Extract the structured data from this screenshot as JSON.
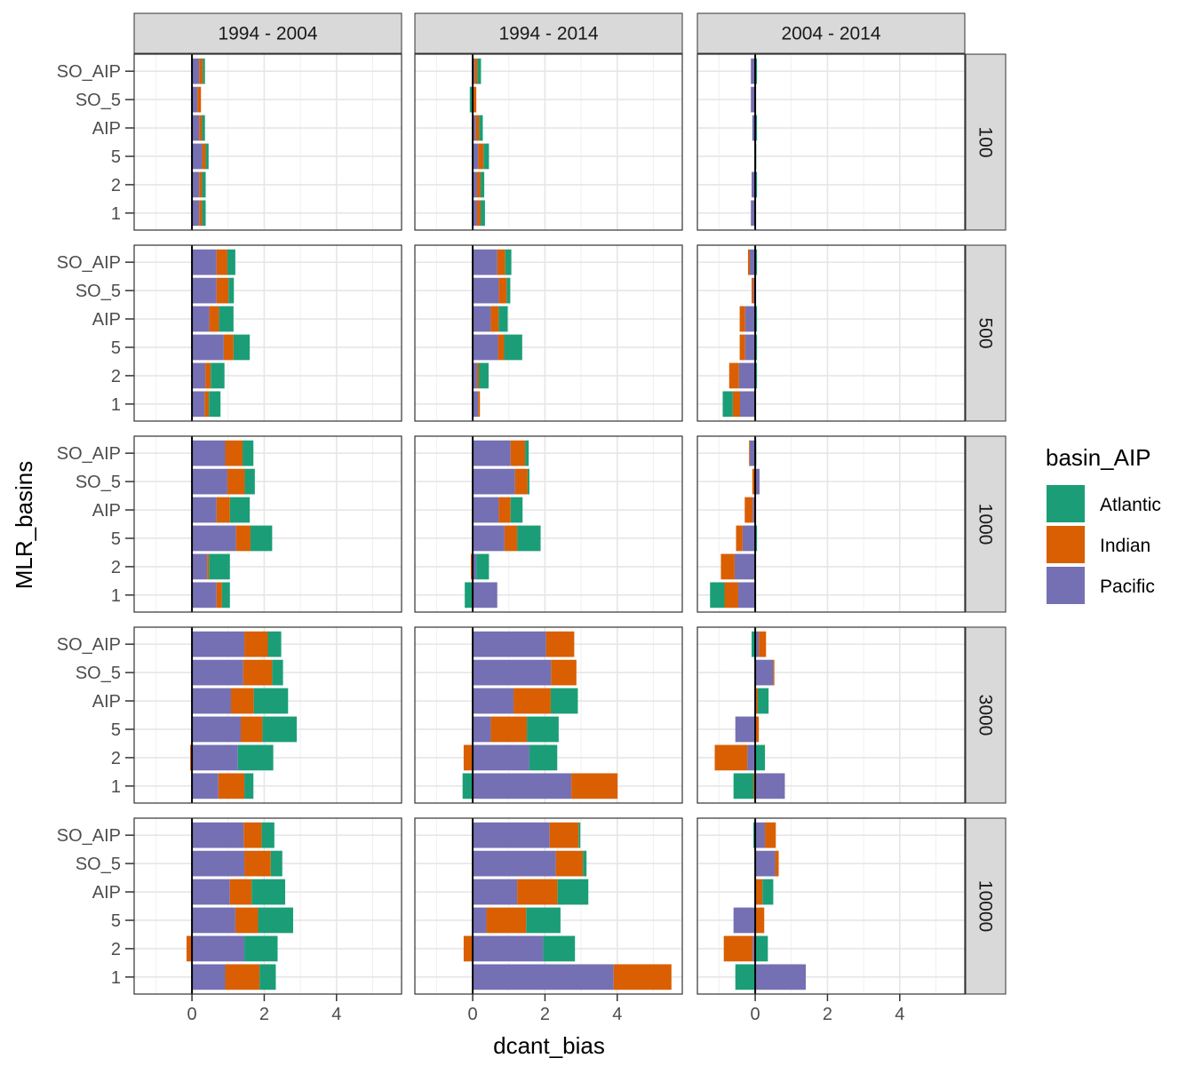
{
  "chart_data": {
    "type": "bar",
    "orientation": "horizontal",
    "stacked": true,
    "xlabel": "dcant_bias",
    "ylabel": "MLR_basins",
    "xlim": [
      -1.6,
      5.8
    ],
    "x_ticks": [
      0,
      2,
      4
    ],
    "categories": [
      "SO_AIP",
      "SO_5",
      "AIP",
      "5",
      "2",
      "1"
    ],
    "column_facets": [
      "1994 - 2004",
      "1994 - 2014",
      "2004 - 2014"
    ],
    "row_facets": [
      "100",
      "500",
      "1000",
      "3000",
      "10000"
    ],
    "legend": {
      "title": "basin_AIP",
      "position": "right",
      "entries": [
        {
          "name": "Atlantic",
          "color": "#1B9E77"
        },
        {
          "name": "Indian",
          "color": "#D95F02"
        },
        {
          "name": "Pacific",
          "color": "#7570B3"
        }
      ]
    },
    "stack_order": [
      "Pacific",
      "Indian",
      "Atlantic"
    ],
    "grid": true,
    "panels": [
      {
        "row": "100",
        "col": "1994 - 2004",
        "values": {
          "SO_AIP": {
            "Pacific": 0.2,
            "Indian": 0.1,
            "Atlantic": 0.06
          },
          "SO_5": {
            "Pacific": 0.15,
            "Indian": 0.1,
            "Atlantic": 0.0
          },
          "AIP": {
            "Pacific": 0.2,
            "Indian": 0.08,
            "Atlantic": 0.08
          },
          "5": {
            "Pacific": 0.28,
            "Indian": 0.1,
            "Atlantic": 0.08
          },
          "2": {
            "Pacific": 0.2,
            "Indian": 0.08,
            "Atlantic": 0.1
          },
          "1": {
            "Pacific": 0.2,
            "Indian": 0.08,
            "Atlantic": 0.1
          }
        }
      },
      {
        "row": "100",
        "col": "1994 - 2014",
        "values": {
          "SO_AIP": {
            "Pacific": 0.05,
            "Indian": 0.08,
            "Atlantic": 0.1
          },
          "SO_5": {
            "Pacific": 0.0,
            "Indian": 0.1,
            "Atlantic": -0.08
          },
          "AIP": {
            "Pacific": 0.08,
            "Indian": 0.1,
            "Atlantic": 0.1
          },
          "5": {
            "Pacific": 0.15,
            "Indian": 0.15,
            "Atlantic": 0.15
          },
          "2": {
            "Pacific": 0.12,
            "Indian": 0.1,
            "Atlantic": 0.1
          },
          "1": {
            "Pacific": 0.12,
            "Indian": 0.1,
            "Atlantic": 0.12
          }
        }
      },
      {
        "row": "100",
        "col": "2004 - 2014",
        "values": {
          "SO_AIP": {
            "Pacific": -0.12,
            "Indian": 0.0,
            "Atlantic": 0.05
          },
          "SO_5": {
            "Pacific": -0.12,
            "Indian": 0.0,
            "Atlantic": 0.0
          },
          "AIP": {
            "Pacific": -0.08,
            "Indian": 0.0,
            "Atlantic": 0.05
          },
          "5": {
            "Pacific": 0.0,
            "Indian": 0.0,
            "Atlantic": 0.03
          },
          "2": {
            "Pacific": -0.1,
            "Indian": 0.0,
            "Atlantic": 0.05
          },
          "1": {
            "Pacific": -0.12,
            "Indian": 0.0,
            "Atlantic": 0.0
          }
        }
      },
      {
        "row": "500",
        "col": "1994 - 2004",
        "values": {
          "SO_AIP": {
            "Pacific": 0.68,
            "Indian": 0.3,
            "Atlantic": 0.22
          },
          "SO_5": {
            "Pacific": 0.68,
            "Indian": 0.33,
            "Atlantic": 0.15
          },
          "AIP": {
            "Pacific": 0.48,
            "Indian": 0.27,
            "Atlantic": 0.4
          },
          "5": {
            "Pacific": 0.88,
            "Indian": 0.27,
            "Atlantic": 0.45
          },
          "2": {
            "Pacific": 0.37,
            "Indian": 0.15,
            "Atlantic": 0.38
          },
          "1": {
            "Pacific": 0.35,
            "Indian": 0.12,
            "Atlantic": 0.32
          }
        }
      },
      {
        "row": "500",
        "col": "1994 - 2014",
        "values": {
          "SO_AIP": {
            "Pacific": 0.68,
            "Indian": 0.22,
            "Atlantic": 0.17
          },
          "SO_5": {
            "Pacific": 0.72,
            "Indian": 0.22,
            "Atlantic": 0.1
          },
          "AIP": {
            "Pacific": 0.5,
            "Indian": 0.22,
            "Atlantic": 0.25
          },
          "5": {
            "Pacific": 0.7,
            "Indian": 0.17,
            "Atlantic": 0.5
          },
          "2": {
            "Pacific": 0.12,
            "Indian": 0.05,
            "Atlantic": 0.27
          },
          "1": {
            "Pacific": 0.15,
            "Indian": 0.05,
            "Atlantic": 0.0
          }
        }
      },
      {
        "row": "500",
        "col": "2004 - 2014",
        "values": {
          "SO_AIP": {
            "Pacific": -0.15,
            "Indian": -0.05,
            "Atlantic": 0.05
          },
          "SO_5": {
            "Pacific": -0.05,
            "Indian": -0.05,
            "Atlantic": 0.0
          },
          "AIP": {
            "Pacific": -0.28,
            "Indian": -0.15,
            "Atlantic": 0.05
          },
          "5": {
            "Pacific": -0.28,
            "Indian": -0.15,
            "Atlantic": 0.05
          },
          "2": {
            "Pacific": -0.45,
            "Indian": -0.27,
            "Atlantic": 0.05
          },
          "1": {
            "Pacific": -0.42,
            "Indian": -0.2,
            "Atlantic": -0.28
          }
        }
      },
      {
        "row": "1000",
        "col": "1994 - 2004",
        "values": {
          "SO_AIP": {
            "Pacific": 0.92,
            "Indian": 0.48,
            "Atlantic": 0.3
          },
          "SO_5": {
            "Pacific": 0.98,
            "Indian": 0.48,
            "Atlantic": 0.28
          },
          "AIP": {
            "Pacific": 0.68,
            "Indian": 0.37,
            "Atlantic": 0.55
          },
          "5": {
            "Pacific": 1.22,
            "Indian": 0.4,
            "Atlantic": 0.6
          },
          "2": {
            "Pacific": 0.42,
            "Indian": 0.05,
            "Atlantic": 0.58
          },
          "1": {
            "Pacific": 0.68,
            "Indian": 0.15,
            "Atlantic": 0.22
          }
        }
      },
      {
        "row": "1000",
        "col": "1994 - 2014",
        "values": {
          "SO_AIP": {
            "Pacific": 1.05,
            "Indian": 0.4,
            "Atlantic": 0.1
          },
          "SO_5": {
            "Pacific": 1.17,
            "Indian": 0.35,
            "Atlantic": 0.05
          },
          "AIP": {
            "Pacific": 0.72,
            "Indian": 0.33,
            "Atlantic": 0.33
          },
          "5": {
            "Pacific": 0.88,
            "Indian": 0.35,
            "Atlantic": 0.65
          },
          "2": {
            "Pacific": 0.1,
            "Indian": -0.05,
            "Atlantic": 0.35
          },
          "1": {
            "Pacific": 0.68,
            "Indian": 0.0,
            "Atlantic": -0.22
          }
        }
      },
      {
        "row": "1000",
        "col": "2004 - 2014",
        "values": {
          "SO_AIP": {
            "Pacific": -0.15,
            "Indian": -0.02,
            "Atlantic": 0.03
          },
          "SO_5": {
            "Pacific": 0.12,
            "Indian": -0.08,
            "Atlantic": 0.0
          },
          "AIP": {
            "Pacific": -0.07,
            "Indian": -0.22,
            "Atlantic": 0.0
          },
          "5": {
            "Pacific": -0.35,
            "Indian": -0.18,
            "Atlantic": 0.05
          },
          "2": {
            "Pacific": -0.57,
            "Indian": -0.38,
            "Atlantic": 0.0
          },
          "1": {
            "Pacific": -0.47,
            "Indian": -0.38,
            "Atlantic": -0.4
          }
        }
      },
      {
        "row": "3000",
        "col": "1994 - 2004",
        "values": {
          "SO_AIP": {
            "Pacific": 1.45,
            "Indian": 0.65,
            "Atlantic": 0.37
          },
          "SO_5": {
            "Pacific": 1.42,
            "Indian": 0.8,
            "Atlantic": 0.3
          },
          "AIP": {
            "Pacific": 1.08,
            "Indian": 0.63,
            "Atlantic": 0.95
          },
          "5": {
            "Pacific": 1.35,
            "Indian": 0.6,
            "Atlantic": 0.95
          },
          "2": {
            "Pacific": 1.27,
            "Indian": -0.05,
            "Atlantic": 0.98
          },
          "1": {
            "Pacific": 0.73,
            "Indian": 0.72,
            "Atlantic": 0.25
          }
        }
      },
      {
        "row": "3000",
        "col": "1994 - 2014",
        "values": {
          "SO_AIP": {
            "Pacific": 2.03,
            "Indian": 0.78,
            "Atlantic": 0.0
          },
          "SO_5": {
            "Pacific": 2.17,
            "Indian": 0.7,
            "Atlantic": 0.0
          },
          "AIP": {
            "Pacific": 1.13,
            "Indian": 1.03,
            "Atlantic": 0.75
          },
          "5": {
            "Pacific": 0.5,
            "Indian": 1.0,
            "Atlantic": 0.88
          },
          "2": {
            "Pacific": 1.57,
            "Indian": -0.25,
            "Atlantic": 0.77
          },
          "1": {
            "Pacific": 2.73,
            "Indian": 1.28,
            "Atlantic": -0.28
          }
        }
      },
      {
        "row": "3000",
        "col": "2004 - 2014",
        "values": {
          "SO_AIP": {
            "Pacific": 0.1,
            "Indian": 0.2,
            "Atlantic": -0.1
          },
          "SO_5": {
            "Pacific": 0.5,
            "Indian": 0.03,
            "Atlantic": 0.0
          },
          "AIP": {
            "Pacific": 0.0,
            "Indian": 0.07,
            "Atlantic": 0.3
          },
          "5": {
            "Pacific": -0.55,
            "Indian": 0.1,
            "Atlantic": 0.0
          },
          "2": {
            "Pacific": -0.22,
            "Indian": -0.9,
            "Atlantic": 0.27
          },
          "1": {
            "Pacific": 0.82,
            "Indian": -0.05,
            "Atlantic": -0.55
          }
        }
      },
      {
        "row": "10000",
        "col": "1994 - 2004",
        "values": {
          "SO_AIP": {
            "Pacific": 1.43,
            "Indian": 0.5,
            "Atlantic": 0.35
          },
          "SO_5": {
            "Pacific": 1.45,
            "Indian": 0.73,
            "Atlantic": 0.32
          },
          "AIP": {
            "Pacific": 1.05,
            "Indian": 0.6,
            "Atlantic": 0.93
          },
          "5": {
            "Pacific": 1.2,
            "Indian": 0.63,
            "Atlantic": 0.97
          },
          "2": {
            "Pacific": 1.45,
            "Indian": -0.15,
            "Atlantic": 0.92
          },
          "1": {
            "Pacific": 0.92,
            "Indian": 0.95,
            "Atlantic": 0.45
          }
        }
      },
      {
        "row": "10000",
        "col": "1994 - 2014",
        "values": {
          "SO_AIP": {
            "Pacific": 2.13,
            "Indian": 0.8,
            "Atlantic": 0.05
          },
          "SO_5": {
            "Pacific": 2.3,
            "Indian": 0.75,
            "Atlantic": 0.1
          },
          "AIP": {
            "Pacific": 1.23,
            "Indian": 1.12,
            "Atlantic": 0.85
          },
          "5": {
            "Pacific": 0.38,
            "Indian": 1.1,
            "Atlantic": 0.95
          },
          "2": {
            "Pacific": 1.95,
            "Indian": -0.25,
            "Atlantic": 0.88
          },
          "1": {
            "Pacific": 3.9,
            "Indian": 1.6,
            "Atlantic": 0.0
          }
        }
      },
      {
        "row": "10000",
        "col": "2004 - 2014",
        "values": {
          "SO_AIP": {
            "Pacific": 0.27,
            "Indian": 0.3,
            "Atlantic": -0.05
          },
          "SO_5": {
            "Pacific": 0.55,
            "Indian": 0.1,
            "Atlantic": 0.0
          },
          "AIP": {
            "Pacific": 0.0,
            "Indian": 0.2,
            "Atlantic": 0.3
          },
          "5": {
            "Pacific": -0.6,
            "Indian": 0.25,
            "Atlantic": 0.0
          },
          "2": {
            "Pacific": -0.07,
            "Indian": -0.8,
            "Atlantic": 0.35
          },
          "1": {
            "Pacific": 1.4,
            "Indian": 0.0,
            "Atlantic": -0.55
          }
        }
      }
    ]
  }
}
